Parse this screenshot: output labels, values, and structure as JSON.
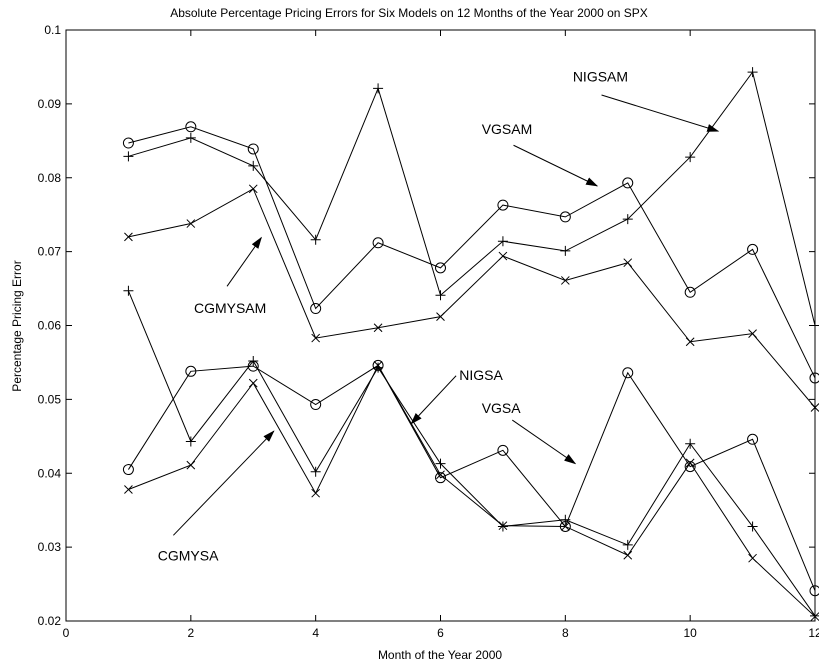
{
  "chart_data": {
    "type": "line",
    "title": "Absolute Percentage Pricing Errors for Six Models on 12 Months of the Year 2000 on SPX",
    "xlabel": "Month of the Year 2000",
    "ylabel": "Percentage Pricing Error",
    "xlim": [
      0,
      12
    ],
    "ylim": [
      0.02,
      0.1
    ],
    "x_ticks": [
      0,
      2,
      4,
      6,
      8,
      10,
      12
    ],
    "y_ticks": [
      0.02,
      0.03,
      0.04,
      0.05,
      0.06,
      0.07,
      0.08,
      0.09,
      0.1
    ],
    "x_tick_labels": [
      "0",
      "2",
      "4",
      "6",
      "8",
      "10",
      "12"
    ],
    "y_tick_labels": [
      "0.02",
      "0.03",
      "0.04",
      "0.05",
      "0.06",
      "0.07",
      "0.08",
      "0.09",
      "0.1"
    ],
    "grid": false,
    "x": [
      1,
      2,
      3,
      4,
      5,
      6,
      7,
      8,
      9,
      10,
      11,
      12
    ],
    "series": [
      {
        "marker": "plus",
        "values": [
          0.0829,
          0.0854,
          0.0816,
          0.0716,
          0.0921,
          0.0641,
          0.0714,
          0.0701,
          0.0744,
          0.0828,
          0.0943,
          0.06
        ]
      },
      {
        "marker": "circle",
        "values": [
          0.0847,
          0.0869,
          0.0839,
          0.0623,
          0.0712,
          0.0678,
          0.0763,
          0.0747,
          0.0793,
          0.0645,
          0.0703,
          0.0529
        ]
      },
      {
        "marker": "x",
        "values": [
          0.072,
          0.0738,
          0.0785,
          0.0583,
          0.0597,
          0.0612,
          0.0694,
          0.0661,
          0.0685,
          0.0578,
          0.0589,
          0.0489
        ]
      },
      {
        "marker": "plus",
        "values": [
          0.0647,
          0.0443,
          0.0552,
          0.0402,
          0.0543,
          0.0413,
          0.0328,
          0.0337,
          0.0303,
          0.044,
          0.0328,
          0.0207
        ]
      },
      {
        "marker": "circle",
        "values": [
          0.0405,
          0.0538,
          0.0545,
          0.0493,
          0.0546,
          0.0394,
          0.0431,
          0.0328,
          0.0536,
          0.0409,
          0.0446,
          0.0241
        ]
      },
      {
        "marker": "x",
        "values": [
          0.0378,
          0.0411,
          0.0522,
          0.0373,
          0.0546,
          0.0398,
          0.0329,
          0.0328,
          0.0289,
          0.0414,
          0.0285,
          0.0206
        ]
      }
    ],
    "annotations": [
      {
        "text": "NIGSAM",
        "label_at": [
          8.12,
          0.0937
        ],
        "arrow_from": [
          8.58,
          0.0912
        ],
        "arrow_to": [
          10.45,
          0.0863
        ]
      },
      {
        "text": "VGSAM",
        "label_at": [
          6.66,
          0.0866
        ],
        "arrow_from": [
          7.17,
          0.0844
        ],
        "arrow_to": [
          8.51,
          0.0789
        ]
      },
      {
        "text": "CGMYSAM",
        "label_at": [
          2.05,
          0.0624
        ],
        "arrow_from": [
          2.58,
          0.0653
        ],
        "arrow_to": [
          3.13,
          0.0719
        ]
      },
      {
        "text": "NIGSA",
        "label_at": [
          6.3,
          0.0533
        ],
        "arrow_from": [
          6.25,
          0.0532
        ],
        "arrow_to": [
          5.53,
          0.0467
        ]
      },
      {
        "text": "VGSA",
        "label_at": [
          6.66,
          0.0488
        ],
        "arrow_from": [
          7.15,
          0.0472
        ],
        "arrow_to": [
          8.16,
          0.0413
        ]
      },
      {
        "text": "CGMYSA",
        "label_at": [
          1.47,
          0.0289
        ],
        "arrow_from": [
          1.72,
          0.0316
        ],
        "arrow_to": [
          3.33,
          0.0457
        ]
      }
    ]
  }
}
